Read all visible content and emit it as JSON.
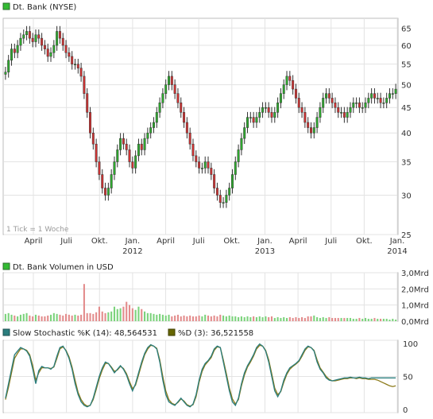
{
  "header": {
    "title": "Dt. Bank (NYSE)",
    "tick_note": "1 Tick = 1 Woche"
  },
  "x_axis": {
    "month_labels": [
      "April",
      "Juli",
      "Okt.",
      "Jan.",
      "April",
      "Juli",
      "Okt.",
      "Jan.",
      "April",
      "Juli",
      "Okt.",
      "Jan."
    ],
    "year_labels": [
      "2012",
      "2013",
      "2014"
    ]
  },
  "chart_data": [
    {
      "type": "candlestick",
      "title": "Dt. Bank (NYSE)",
      "y_scale": "log",
      "ylim": [
        25,
        68
      ],
      "y_ticks": [
        25,
        30,
        35,
        40,
        45,
        50,
        55,
        60,
        65
      ],
      "x_ticks": [
        "April",
        "Juli",
        "Okt.",
        "Jan. 2012",
        "April",
        "Juli",
        "Okt.",
        "Jan. 2013",
        "April",
        "Juli",
        "Okt.",
        "Jan. 2014"
      ],
      "frequency": "weekly",
      "grid": true,
      "series": [
        {
          "name": "Dt. Bank (NYSE)",
          "approx_close": [
            53,
            56,
            59,
            58,
            60,
            62,
            63,
            64,
            62,
            61,
            63,
            62,
            60,
            59,
            57,
            58,
            60,
            64,
            62,
            60,
            58,
            57,
            55,
            55,
            54,
            52,
            48,
            44,
            40,
            38,
            35,
            33,
            31,
            30,
            31,
            33,
            35,
            37,
            39,
            38,
            37,
            35,
            34,
            36,
            38,
            37,
            39,
            40,
            41,
            42,
            44,
            46,
            48,
            50,
            52,
            50,
            48,
            46,
            44,
            42,
            40,
            38,
            36,
            35,
            34,
            34,
            35,
            34,
            33,
            31,
            30,
            29,
            29,
            30,
            31,
            33,
            35,
            37,
            39,
            41,
            43,
            43,
            42,
            43,
            44,
            45,
            45,
            44,
            43,
            44,
            46,
            48,
            50,
            52,
            51,
            49,
            47,
            45,
            44,
            42,
            41,
            40,
            41,
            43,
            45,
            47,
            48,
            47,
            46,
            45,
            44,
            44,
            43,
            44,
            45,
            46,
            46,
            45,
            45,
            46,
            47,
            48,
            47,
            47,
            46,
            46,
            47,
            48,
            48,
            49
          ]
        }
      ]
    },
    {
      "type": "bar",
      "title": "Dt. Bank Volumen in USD",
      "ylim": [
        0,
        3.0
      ],
      "y_ticks": [
        "0,0Mrd",
        "1,0Mrd",
        "2,0Mrd",
        "3,0Mrd"
      ],
      "series": [
        {
          "name": "Volumen",
          "approx_values_bn": [
            0.45,
            0.5,
            0.4,
            0.35,
            0.3,
            0.4,
            0.45,
            0.5,
            0.35,
            0.3,
            0.4,
            0.35,
            0.3,
            0.3,
            0.35,
            0.4,
            0.5,
            0.45,
            0.4,
            0.35,
            0.45,
            0.4,
            0.35,
            0.4,
            0.35,
            0.4,
            2.3,
            0.5,
            0.5,
            0.45,
            0.55,
            0.9,
            0.6,
            0.5,
            0.55,
            0.6,
            0.9,
            0.75,
            0.8,
            0.9,
            1.2,
            1.0,
            0.8,
            0.7,
            0.9,
            0.75,
            0.6,
            0.5,
            0.5,
            0.45,
            0.4,
            0.45,
            0.4,
            0.35,
            0.4,
            0.3,
            0.35,
            0.4,
            0.3,
            0.35,
            0.3,
            0.35,
            0.3,
            0.3,
            0.35,
            0.3,
            0.4,
            0.35,
            0.3,
            0.35,
            0.3,
            0.4,
            0.35,
            0.3,
            0.35,
            0.3,
            0.3,
            0.25,
            0.3,
            0.25,
            0.3,
            0.25,
            0.3,
            0.25,
            0.3,
            0.25,
            0.3,
            0.25,
            0.3,
            0.2,
            0.25,
            0.2,
            0.25,
            0.2,
            0.25,
            0.2,
            0.25,
            0.2,
            0.25,
            0.2,
            0.3,
            0.3,
            0.35,
            0.25,
            0.2,
            0.25,
            0.2,
            0.25,
            0.2,
            0.2,
            0.2,
            0.2,
            0.2,
            0.2,
            0.2,
            0.15,
            0.15,
            0.2,
            0.15,
            0.2,
            0.15,
            0.15,
            0.2,
            0.15,
            0.15,
            0.15,
            0.15,
            0.1,
            0.15,
            0.1
          ]
        }
      ]
    },
    {
      "type": "line",
      "ylim": [
        0,
        100
      ],
      "y_ticks": [
        0,
        50,
        100
      ],
      "series": [
        {
          "name": "Slow Stochastic %K (14): 48,564531",
          "color": "#2a7d7d",
          "approx_values": [
            20,
            40,
            60,
            80,
            85,
            90,
            88,
            85,
            78,
            60,
            40,
            58,
            64,
            62,
            62,
            60,
            64,
            78,
            90,
            92,
            85,
            75,
            60,
            40,
            25,
            15,
            10,
            8,
            10,
            20,
            35,
            50,
            62,
            70,
            68,
            62,
            55,
            60,
            65,
            60,
            52,
            40,
            30,
            40,
            55,
            70,
            82,
            90,
            94,
            92,
            88,
            70,
            45,
            25,
            15,
            12,
            10,
            15,
            20,
            15,
            10,
            8,
            12,
            25,
            45,
            60,
            68,
            72,
            78,
            88,
            92,
            90,
            70,
            50,
            30,
            15,
            10,
            20,
            40,
            55,
            65,
            72,
            80,
            90,
            95,
            92,
            85,
            70,
            50,
            30,
            22,
            30,
            45,
            55,
            62,
            65,
            68,
            72,
            80,
            88,
            92,
            90,
            85,
            70,
            60,
            55,
            48,
            45,
            44,
            45,
            46,
            47,
            48,
            48,
            49,
            48,
            48,
            49,
            48,
            48,
            47,
            48,
            48,
            48,
            48,
            48,
            48,
            48,
            48,
            48
          ]
        },
        {
          "name": "%D (3): 36,521558",
          "color": "#8c7a1a",
          "approx_values": [
            18,
            35,
            55,
            75,
            82,
            88,
            88,
            86,
            80,
            65,
            45,
            55,
            62,
            62,
            62,
            61,
            63,
            75,
            88,
            91,
            86,
            77,
            63,
            45,
            28,
            18,
            12,
            9,
            10,
            18,
            32,
            47,
            59,
            68,
            68,
            63,
            57,
            59,
            64,
            61,
            54,
            43,
            33,
            38,
            52,
            67,
            80,
            88,
            93,
            92,
            89,
            73,
            50,
            30,
            18,
            13,
            11,
            14,
            19,
            16,
            11,
            9,
            11,
            22,
            42,
            57,
            66,
            71,
            76,
            86,
            91,
            90,
            73,
            54,
            34,
            19,
            12,
            18,
            37,
            52,
            63,
            70,
            78,
            88,
            93,
            92,
            86,
            73,
            54,
            34,
            25,
            29,
            42,
            53,
            60,
            64,
            67,
            71,
            78,
            86,
            91,
            90,
            86,
            73,
            62,
            56,
            50,
            46,
            44,
            44,
            45,
            46,
            47,
            47,
            48,
            48,
            47,
            48,
            47,
            47,
            46,
            46,
            46,
            45,
            43,
            41,
            39,
            37,
            36,
            37
          ]
        }
      ]
    }
  ],
  "volume_panel": {
    "title": "Dt. Bank Volumen in USD",
    "tick_labels": [
      "3,0Mrd",
      "2,0Mrd",
      "1,0Mrd",
      "0,0Mrd"
    ]
  },
  "stoch_panel": {
    "k_label": "Slow Stochastic %K (14): 48,564531",
    "d_label": "%D (3): 36,521558",
    "tick_labels": [
      "100",
      "50",
      "0"
    ]
  },
  "colors": {
    "grid": "#e3e3e3",
    "frame": "#bdbdbd",
    "up_candle": "#2eaa2e",
    "down_candle": "#d03333",
    "wick": "#333333",
    "vol_up": "#7cd37c",
    "vol_down": "#e38c8c",
    "k_line": "#2a7d7d",
    "d_line": "#8c7a1a",
    "legend_green": "#33bb33",
    "legend_olive": "#666600",
    "tick_note": "#9a9a9a"
  }
}
